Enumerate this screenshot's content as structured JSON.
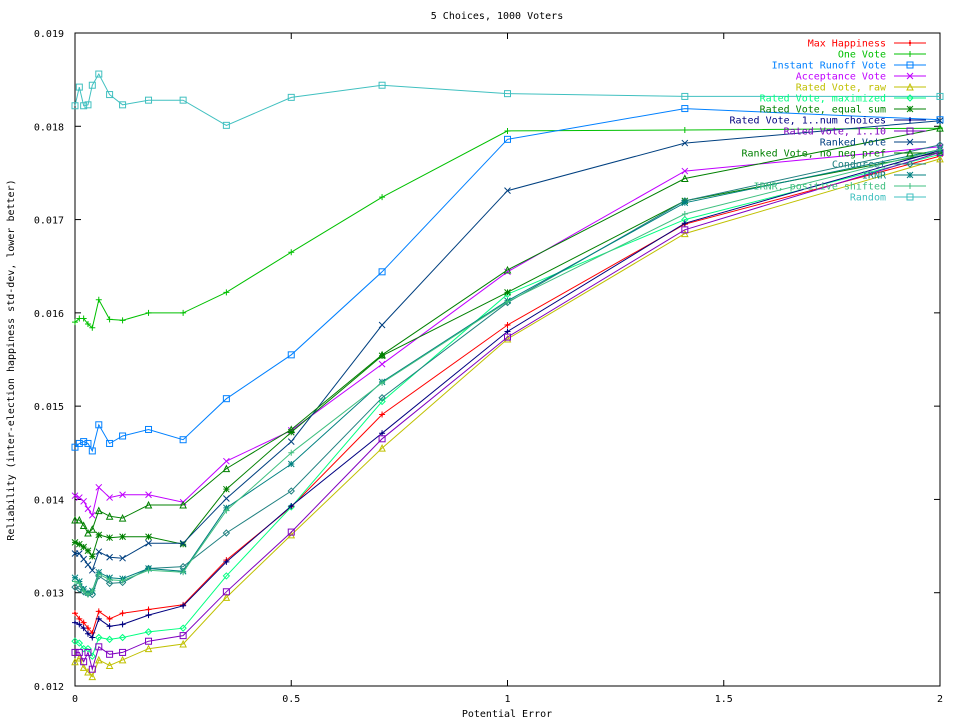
{
  "chart_data": {
    "type": "line",
    "title": "5 Choices, 1000 Voters",
    "xlabel": "Potential Error",
    "ylabel": "Reliability (inter-election happiness std-dev, lower better)",
    "xlim": [
      0,
      2
    ],
    "ylim": [
      0.012,
      0.019
    ],
    "xticks": [
      0,
      0.5,
      1,
      1.5,
      2
    ],
    "xtick_labels": [
      "0",
      "0.5",
      "1",
      "1.5",
      "2"
    ],
    "yticks": [
      0.012,
      0.013,
      0.014,
      0.015,
      0.016,
      0.017,
      0.018,
      0.019
    ],
    "ytick_labels": [
      "0.012",
      "0.013",
      "0.014",
      "0.015",
      "0.016",
      "0.017",
      "0.018",
      "0.019"
    ],
    "grid": false,
    "legend_position": "top-right",
    "x": [
      0,
      0.01,
      0.02,
      0.03,
      0.04,
      0.055,
      0.08,
      0.11,
      0.17,
      0.25,
      0.35,
      0.5,
      0.71,
      1.0,
      1.41,
      2.0
    ],
    "series": [
      {
        "name": "Max Happiness",
        "color": "#ff0000",
        "marker": "plus-dot",
        "values": [
          0.01278,
          0.01272,
          0.01268,
          0.01262,
          0.01257,
          0.0128,
          0.01272,
          0.01278,
          0.01282,
          0.01287,
          0.01335,
          0.01392,
          0.01491,
          0.01587,
          0.01695,
          0.01768
        ]
      },
      {
        "name": "One Vote",
        "color": "#00c000",
        "marker": "plus",
        "values": [
          0.0159,
          0.01594,
          0.01594,
          0.01588,
          0.01584,
          0.01614,
          0.01593,
          0.01592,
          0.016,
          0.016,
          0.01622,
          0.01665,
          0.01724,
          0.01795,
          0.01796,
          0.01798
        ]
      },
      {
        "name": "Instant Runoff Vote",
        "color": "#0080ff",
        "marker": "square",
        "values": [
          0.01456,
          0.0146,
          0.01462,
          0.0146,
          0.01452,
          0.0148,
          0.0146,
          0.01468,
          0.01475,
          0.01464,
          0.01508,
          0.01555,
          0.01644,
          0.01786,
          0.01819,
          0.01807
        ]
      },
      {
        "name": "Acceptance Vote",
        "color": "#c000ff",
        "marker": "x",
        "values": [
          0.01404,
          0.01402,
          0.01398,
          0.0139,
          0.01383,
          0.01413,
          0.01402,
          0.01405,
          0.01405,
          0.01397,
          0.01441,
          0.01474,
          0.01545,
          0.01644,
          0.01752,
          0.01778
        ]
      },
      {
        "name": "Rated Vote, raw",
        "color": "#c0c000",
        "marker": "triangle",
        "values": [
          0.01226,
          0.0123,
          0.0122,
          0.01215,
          0.0121,
          0.01228,
          0.01222,
          0.01228,
          0.0124,
          0.01245,
          0.01295,
          0.01362,
          0.01455,
          0.01572,
          0.01685,
          0.01765
        ]
      },
      {
        "name": "Rated Vote, maximized",
        "color": "#00ff80",
        "marker": "diamond",
        "values": [
          0.01248,
          0.01246,
          0.0124,
          0.0124,
          0.01232,
          0.01252,
          0.0125,
          0.01252,
          0.01258,
          0.01262,
          0.01318,
          0.01392,
          0.01505,
          0.0162,
          0.017,
          0.0177
        ]
      },
      {
        "name": "Rated Vote, equal sum",
        "color": "#008000",
        "marker": "star",
        "values": [
          0.01354,
          0.01352,
          0.01349,
          0.01345,
          0.01339,
          0.01362,
          0.01359,
          0.0136,
          0.0136,
          0.01352,
          0.01411,
          0.01472,
          0.01554,
          0.01622,
          0.0172,
          0.01772
        ]
      },
      {
        "name": "Rated Vote, 1..num choices",
        "color": "#000080",
        "marker": "plus-dot",
        "values": [
          0.01268,
          0.01266,
          0.01262,
          0.01256,
          0.01252,
          0.01272,
          0.01264,
          0.01266,
          0.01276,
          0.01286,
          0.01333,
          0.01393,
          0.01471,
          0.0158,
          0.01696,
          0.01774
        ]
      },
      {
        "name": "Rated Vote, 1..10",
        "color": "#8000c0",
        "marker": "square",
        "values": [
          0.01236,
          0.01236,
          0.01226,
          0.01236,
          0.01218,
          0.01242,
          0.01234,
          0.01236,
          0.01248,
          0.01254,
          0.01301,
          0.01365,
          0.01465,
          0.01574,
          0.01689,
          0.01772
        ]
      },
      {
        "name": "Ranked Vote",
        "color": "#004080",
        "marker": "x",
        "values": [
          0.01342,
          0.01342,
          0.01336,
          0.0133,
          0.01324,
          0.01344,
          0.01338,
          0.01337,
          0.01353,
          0.01353,
          0.01401,
          0.01462,
          0.01587,
          0.01731,
          0.01782,
          0.01806
        ]
      },
      {
        "name": "Ranked Vote, no neg pref",
        "color": "#008000",
        "marker": "triangle",
        "values": [
          0.01378,
          0.01378,
          0.01372,
          0.01364,
          0.01368,
          0.01388,
          0.01382,
          0.0138,
          0.01394,
          0.01394,
          0.01433,
          0.01475,
          0.01555,
          0.01646,
          0.01744,
          0.01798
        ]
      },
      {
        "name": "Condorcet",
        "color": "#208080",
        "marker": "diamond",
        "values": [
          0.01306,
          0.01304,
          0.01301,
          0.01299,
          0.01298,
          0.01318,
          0.0131,
          0.01311,
          0.01326,
          0.01328,
          0.01364,
          0.01409,
          0.01509,
          0.01611,
          0.0172,
          0.0178
        ]
      },
      {
        "name": "IRNR",
        "color": "#008080",
        "marker": "star",
        "values": [
          0.01316,
          0.01312,
          0.01304,
          0.013,
          0.01302,
          0.01322,
          0.01316,
          0.01315,
          0.01326,
          0.01323,
          0.01391,
          0.01438,
          0.01526,
          0.01613,
          0.01718,
          0.01775
        ]
      },
      {
        "name": "IRNR, positive shifted",
        "color": "#40c080",
        "marker": "plus",
        "values": [
          0.01312,
          0.0131,
          0.01302,
          0.01298,
          0.01302,
          0.0132,
          0.01314,
          0.01313,
          0.01324,
          0.01322,
          0.01388,
          0.0145,
          0.01525,
          0.01612,
          0.01706,
          0.01775
        ]
      },
      {
        "name": "Random",
        "color": "#40c0c0",
        "marker": "square",
        "values": [
          0.01822,
          0.01842,
          0.01822,
          0.01823,
          0.01844,
          0.01856,
          0.01834,
          0.01823,
          0.01828,
          0.01828,
          0.01801,
          0.01831,
          0.01844,
          0.01835,
          0.01832,
          0.01832
        ]
      }
    ]
  }
}
